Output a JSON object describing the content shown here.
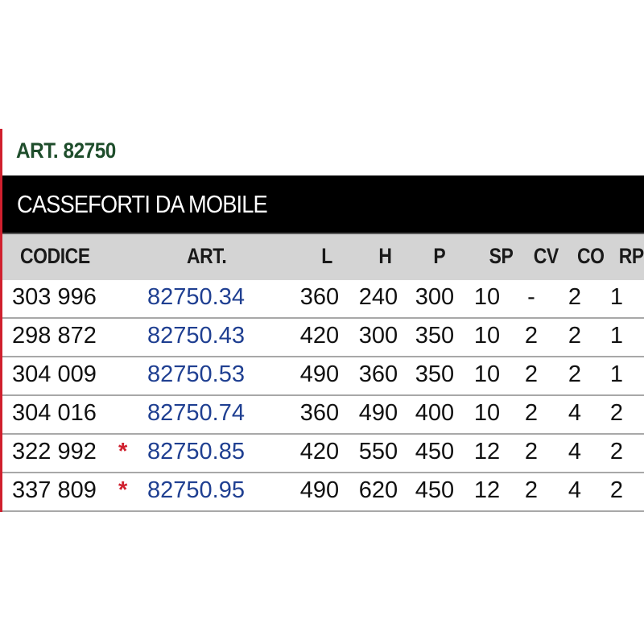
{
  "title": "ART. 82750",
  "section": "CASSEFORTI DA MOBILE",
  "columns": [
    "CODICE",
    "ART.",
    "L",
    "H",
    "P",
    "SP",
    "CV",
    "CO",
    "RP"
  ],
  "rows": [
    {
      "codice": "303 996",
      "mark": "",
      "art": "82750.34",
      "l": "360",
      "h": "240",
      "p": "300",
      "sp": "10",
      "cv": "-",
      "co": "2",
      "rp": "1"
    },
    {
      "codice": "298 872",
      "mark": "",
      "art": "82750.43",
      "l": "420",
      "h": "300",
      "p": "350",
      "sp": "10",
      "cv": "2",
      "co": "2",
      "rp": "1"
    },
    {
      "codice": "304 009",
      "mark": "",
      "art": "82750.53",
      "l": "490",
      "h": "360",
      "p": "350",
      "sp": "10",
      "cv": "2",
      "co": "2",
      "rp": "1"
    },
    {
      "codice": "304 016",
      "mark": "",
      "art": "82750.74",
      "l": "360",
      "h": "490",
      "p": "400",
      "sp": "10",
      "cv": "2",
      "co": "4",
      "rp": "2"
    },
    {
      "codice": "322 992",
      "mark": "*",
      "art": "82750.85",
      "l": "420",
      "h": "550",
      "p": "450",
      "sp": "12",
      "cv": "2",
      "co": "4",
      "rp": "2"
    },
    {
      "codice": "337 809",
      "mark": "*",
      "art": "82750.95",
      "l": "490",
      "h": "620",
      "p": "450",
      "sp": "12",
      "cv": "2",
      "co": "4",
      "rp": "2"
    }
  ],
  "colors": {
    "title": "#1e4d2b",
    "art": "#1f3f91",
    "asterisk": "#d0202e",
    "band": "#000000",
    "header": "#d4d4d4"
  }
}
